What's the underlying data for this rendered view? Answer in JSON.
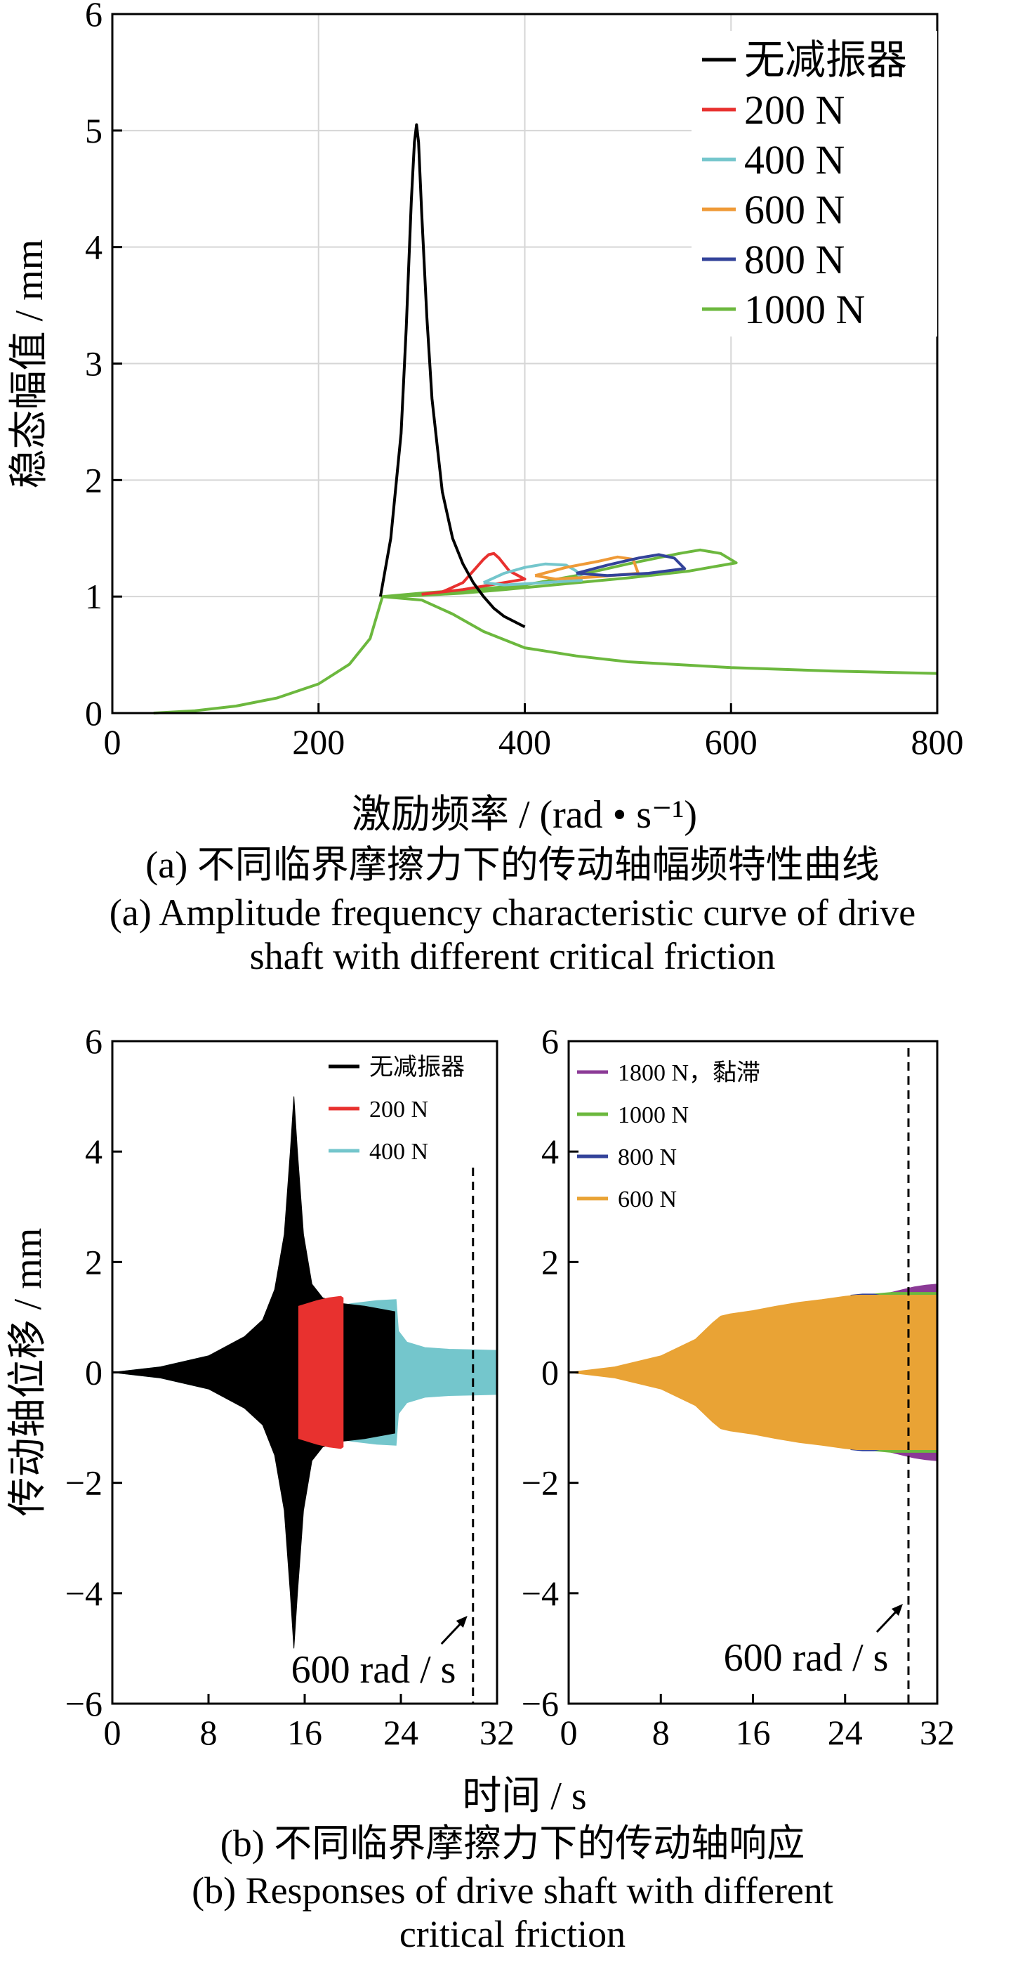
{
  "figure": {
    "caption_a_cn": "(a) 不同临界摩擦力下的传动轴幅频特性曲线",
    "caption_a_en_1": "(a) Amplitude frequency characteristic curve of drive",
    "caption_a_en_2": "shaft with different critical friction",
    "caption_b_cn": "(b) 不同临界摩擦力下的传动轴响应",
    "caption_b_en_1": "(b) Responses of drive shaft with different",
    "caption_b_en_2": "critical friction"
  },
  "chart_data": [
    {
      "type": "line",
      "xlabel": "激励频率 / (rad • s⁻¹)",
      "ylabel": "稳态幅值 / mm",
      "xlim": [
        0,
        800
      ],
      "ylim": [
        0,
        6
      ],
      "xticks": [
        "0",
        "200",
        "400",
        "600",
        "800"
      ],
      "yticks": [
        "0",
        "1",
        "2",
        "3",
        "4",
        "5",
        "6"
      ],
      "grid": true,
      "legend_position": "top-right",
      "series": [
        {
          "name": "无减振器",
          "color": "#000000",
          "x": [
            260,
            270,
            280,
            285,
            290,
            293,
            295,
            297,
            300,
            305,
            310,
            320,
            330,
            340,
            350,
            360,
            370,
            380,
            400
          ],
          "y": [
            1.0,
            1.5,
            2.4,
            3.3,
            4.4,
            4.9,
            5.05,
            4.9,
            4.3,
            3.4,
            2.7,
            1.9,
            1.5,
            1.28,
            1.12,
            1.0,
            0.9,
            0.83,
            0.74
          ]
        },
        {
          "name": "200 N",
          "color": "#e8312f",
          "x": [
            300,
            320,
            340,
            350,
            360,
            365,
            370,
            375,
            385,
            400,
            340,
            300
          ],
          "y": [
            1.02,
            1.04,
            1.12,
            1.22,
            1.32,
            1.36,
            1.37,
            1.33,
            1.22,
            1.15,
            1.06,
            1.02
          ]
        },
        {
          "name": "400 N",
          "color": "#74c6cc",
          "x": [
            360,
            380,
            400,
            420,
            440,
            450,
            455,
            420,
            380,
            360
          ],
          "y": [
            1.12,
            1.2,
            1.25,
            1.28,
            1.27,
            1.22,
            1.14,
            1.12,
            1.1,
            1.12
          ]
        },
        {
          "name": "600 N",
          "color": "#ef9a37",
          "x": [
            410,
            440,
            470,
            490,
            505,
            510,
            470,
            430,
            410
          ],
          "y": [
            1.18,
            1.25,
            1.3,
            1.34,
            1.32,
            1.2,
            1.17,
            1.15,
            1.18
          ]
        },
        {
          "name": "800 N",
          "color": "#33439a",
          "x": [
            450,
            480,
            510,
            530,
            545,
            555,
            520,
            480,
            450
          ],
          "y": [
            1.2,
            1.27,
            1.33,
            1.36,
            1.33,
            1.24,
            1.2,
            1.18,
            1.2
          ]
        },
        {
          "name": "1000 N",
          "color": "#6cb83e",
          "x": [
            40,
            80,
            120,
            160,
            200,
            230,
            250,
            262,
            300,
            350,
            400,
            450,
            500,
            550,
            570,
            590,
            605,
            560,
            500,
            440,
            380,
            340,
            300,
            262,
            300,
            330,
            360,
            400,
            450,
            500,
            600,
            700,
            800
          ],
          "y": [
            0.0,
            0.02,
            0.06,
            0.13,
            0.25,
            0.42,
            0.64,
            1.0,
            1.03,
            1.06,
            1.1,
            1.18,
            1.28,
            1.37,
            1.4,
            1.37,
            1.29,
            1.22,
            1.16,
            1.11,
            1.06,
            1.03,
            1.01,
            1.0,
            0.97,
            0.85,
            0.7,
            0.56,
            0.49,
            0.44,
            0.39,
            0.36,
            0.34
          ]
        }
      ]
    },
    {
      "type": "area",
      "ylabel": "传动轴位移 / mm",
      "xlabel": "时间 / s",
      "xlim": [
        0,
        32
      ],
      "ylim": [
        -6,
        6
      ],
      "xticks": [
        "0",
        "8",
        "16",
        "24",
        "32"
      ],
      "yticks": [
        "6",
        "4",
        "2",
        "0",
        "−2",
        "−4",
        "−6"
      ],
      "annotation": "600 rad / s",
      "annotation_x": 30,
      "legend_position": "top-right",
      "series": [
        {
          "name": "无减振器",
          "color": "#000000",
          "x": [
            0,
            4,
            8,
            11,
            12.5,
            13.5,
            14.3,
            14.8,
            15.1,
            15.4,
            15.9,
            16.6,
            17.5,
            19,
            21,
            23.5
          ],
          "y": [
            0.0,
            0.1,
            0.3,
            0.65,
            0.95,
            1.5,
            2.5,
            4.0,
            5.0,
            4.0,
            2.5,
            1.6,
            1.35,
            1.25,
            1.2,
            1.1
          ]
        },
        {
          "name": "200 N",
          "color": "#e8312f",
          "x": [
            15.5,
            17,
            18,
            19,
            19.2
          ],
          "y": [
            1.2,
            1.3,
            1.35,
            1.38,
            1.35
          ]
        },
        {
          "name": "400 N",
          "color": "#74c6cc",
          "x": [
            0,
            4,
            8,
            11,
            12.5,
            13.5,
            14.5,
            16,
            18,
            20,
            22,
            23.6,
            23.8,
            24.5,
            26,
            28,
            30,
            32
          ],
          "y": [
            0.0,
            0.1,
            0.3,
            0.6,
            0.85,
            0.95,
            1.02,
            1.1,
            1.18,
            1.25,
            1.3,
            1.32,
            0.75,
            0.55,
            0.45,
            0.42,
            0.41,
            0.4
          ]
        }
      ]
    },
    {
      "type": "area",
      "xlabel": "时间 / s",
      "xlim": [
        0,
        32
      ],
      "ylim": [
        -6,
        6
      ],
      "xticks": [
        "0",
        "8",
        "16",
        "24",
        "32"
      ],
      "yticks": [
        "6",
        "4",
        "2",
        "0",
        "−2",
        "−4",
        "−6"
      ],
      "annotation": "600 rad / s",
      "annotation_x": 29.5,
      "legend_position": "top-left",
      "series": [
        {
          "name": "1800 N，黏滞",
          "color": "#8b3a96",
          "x": [
            28,
            29,
            30,
            31,
            32
          ],
          "y": [
            1.45,
            1.5,
            1.55,
            1.58,
            1.6
          ]
        },
        {
          "name": "1000 N",
          "color": "#6cb83e",
          "x": [
            26.5,
            28,
            30,
            32
          ],
          "y": [
            1.42,
            1.45,
            1.45,
            1.45
          ]
        },
        {
          "name": "800 N",
          "color": "#33439a",
          "x": [
            24.5,
            25.5,
            26.5,
            27.5
          ],
          "y": [
            1.4,
            1.42,
            1.42,
            1.38
          ]
        },
        {
          "name": "600 N",
          "color": "#e9a335",
          "x": [
            0,
            4,
            8,
            11,
            12.5,
            13.2,
            14,
            16,
            18,
            20,
            22,
            24,
            25,
            32
          ],
          "y": [
            0.0,
            0.1,
            0.3,
            0.6,
            0.9,
            1.02,
            1.06,
            1.12,
            1.2,
            1.27,
            1.32,
            1.38,
            1.4,
            1.4
          ]
        }
      ]
    }
  ]
}
